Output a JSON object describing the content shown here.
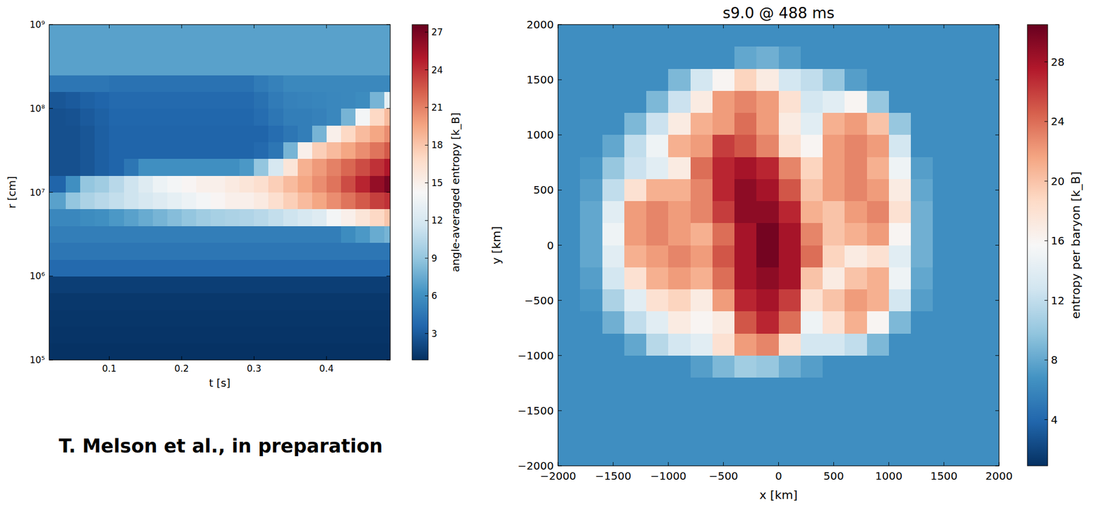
{
  "chart_data": [
    {
      "type": "heatmap",
      "x_label": "t [s]",
      "y_label": "r [cm]",
      "annotation": "T. Melson et al., in preparation",
      "log": "y",
      "grid": false,
      "xlim": [
        0.017,
        0.488
      ],
      "ylim": [
        100000,
        1000000000
      ],
      "xticks": [
        0.1,
        0.2,
        0.3,
        0.4
      ],
      "yticks": [
        {
          "value": 100000,
          "label": "10⁵"
        },
        {
          "value": 1000000,
          "label": "10⁶"
        },
        {
          "value": 10000000,
          "label": "10⁷"
        },
        {
          "value": 100000000,
          "label": "10⁸"
        },
        {
          "value": 1000000000,
          "label": "10⁹"
        }
      ],
      "x_edges": [
        0.017,
        0.04,
        0.06,
        0.08,
        0.1,
        0.12,
        0.14,
        0.16,
        0.18,
        0.2,
        0.22,
        0.24,
        0.26,
        0.28,
        0.3,
        0.32,
        0.34,
        0.36,
        0.38,
        0.4,
        0.42,
        0.44,
        0.46,
        0.48,
        0.488
      ],
      "y_edges": [
        100000,
        158489,
        251189,
        398107,
        630957,
        1000000,
        1584893,
        2511886,
        3981072,
        6309573,
        10000000,
        15848932,
        25118864,
        39810717,
        63095734,
        100000000,
        158489319,
        251188643,
        398107171,
        630957344,
        1000000000
      ],
      "values": [
        [
          1.0,
          1.0,
          1.0,
          1.0,
          1.0,
          1.0,
          1.0,
          1.0,
          1.0,
          1.0,
          1.0,
          1.0,
          1.0,
          1.0,
          1.0,
          1.0,
          1.0,
          1.0,
          1.0,
          1.0,
          1.0,
          1.0,
          1.0,
          1.0
        ],
        [
          1.1,
          1.1,
          1.1,
          1.1,
          1.1,
          1.1,
          1.1,
          1.1,
          1.1,
          1.1,
          1.1,
          1.1,
          1.1,
          1.1,
          1.1,
          1.1,
          1.1,
          1.1,
          1.1,
          1.1,
          1.1,
          1.1,
          1.1,
          1.1
        ],
        [
          1.2,
          1.2,
          1.2,
          1.2,
          1.2,
          1.2,
          1.2,
          1.2,
          1.2,
          1.2,
          1.2,
          1.2,
          1.2,
          1.2,
          1.2,
          1.2,
          1.2,
          1.2,
          1.2,
          1.2,
          1.2,
          1.2,
          1.2,
          1.2
        ],
        [
          1.3,
          1.3,
          1.3,
          1.3,
          1.3,
          1.3,
          1.3,
          1.3,
          1.3,
          1.3,
          1.3,
          1.3,
          1.3,
          1.3,
          1.3,
          1.3,
          1.3,
          1.3,
          1.3,
          1.3,
          1.3,
          1.3,
          1.3,
          1.3
        ],
        [
          1.6,
          1.6,
          1.6,
          1.6,
          1.6,
          1.6,
          1.6,
          1.6,
          1.6,
          1.6,
          1.6,
          1.6,
          1.6,
          1.6,
          1.6,
          1.6,
          1.6,
          1.6,
          1.6,
          1.6,
          1.6,
          1.6,
          1.6,
          1.6
        ],
        [
          3.8,
          3.8,
          3.8,
          3.8,
          3.8,
          3.8,
          3.8,
          3.8,
          3.8,
          3.8,
          3.8,
          3.8,
          3.8,
          3.8,
          3.8,
          3.8,
          3.8,
          3.8,
          3.8,
          3.8,
          3.8,
          3.8,
          3.8,
          3.8
        ],
        [
          4.5,
          4.5,
          4.5,
          4.5,
          4.5,
          4.5,
          4.5,
          4.5,
          4.5,
          4.5,
          4.5,
          4.5,
          4.5,
          4.5,
          4.5,
          4.5,
          4.5,
          4.5,
          4.5,
          4.5,
          4.5,
          4.5,
          4.5,
          4.5
        ],
        [
          5,
          5,
          5,
          5,
          5,
          5,
          5,
          5,
          5,
          5,
          5,
          5,
          5,
          5,
          5,
          5,
          5,
          5,
          5,
          5,
          5.8,
          6.5,
          7.5,
          8
        ],
        [
          5.5,
          5.5,
          5.8,
          6,
          6.5,
          7,
          7.5,
          8,
          8.5,
          9,
          9.5,
          9.8,
          10,
          10.2,
          10.5,
          11,
          11.5,
          12,
          12.5,
          14,
          15,
          16,
          17,
          18
        ],
        [
          7,
          9,
          10,
          10.5,
          11,
          11.5,
          12,
          12.5,
          13,
          13.5,
          14,
          14.5,
          15,
          15,
          15.5,
          16.5,
          17.5,
          18.5,
          19.5,
          20.5,
          21.5,
          22.5,
          23.5,
          24
        ],
        [
          3.5,
          6,
          9,
          9.5,
          10.5,
          11.5,
          12.5,
          13.5,
          14,
          14.5,
          15,
          15,
          15.5,
          16,
          16.5,
          17.5,
          18.5,
          19.5,
          20.5,
          21.5,
          23,
          24.5,
          26,
          27
        ],
        [
          2.5,
          2.5,
          2.8,
          3.2,
          3.5,
          4.5,
          6,
          6,
          6,
          6,
          6,
          6,
          6,
          6.5,
          9,
          12,
          16,
          19,
          20,
          21,
          22,
          23,
          24,
          25
        ],
        [
          2.5,
          2.5,
          2.8,
          3.2,
          3.5,
          3.5,
          3.5,
          3.5,
          3.5,
          3.5,
          3.5,
          3.5,
          3.5,
          3.5,
          3.8,
          4.5,
          8,
          15,
          17.5,
          18.5,
          19.5,
          20.5,
          21.5,
          22.5
        ],
        [
          2.5,
          2.5,
          2.8,
          3.2,
          3.5,
          3.5,
          3.5,
          3.5,
          3.5,
          3.5,
          3.5,
          3.5,
          3.5,
          3.5,
          3.5,
          4,
          4.5,
          5,
          8,
          15,
          17,
          18.5,
          19.5,
          20.5
        ],
        [
          2.5,
          2.6,
          3,
          3.3,
          3.6,
          3.6,
          3.6,
          3.6,
          3.6,
          3.6,
          3.6,
          3.6,
          3.6,
          3.6,
          4,
          4.5,
          5,
          5,
          5.2,
          5.5,
          8,
          14,
          17,
          18.5
        ],
        [
          2.8,
          3,
          3.3,
          3.5,
          3.8,
          3.8,
          3.8,
          3.8,
          3.8,
          3.8,
          3.8,
          3.8,
          3.8,
          3.8,
          4.2,
          4.8,
          5.2,
          5.3,
          5.4,
          5.5,
          5.6,
          5.8,
          8,
          13
        ],
        [
          4.5,
          4.5,
          4.5,
          4.5,
          4.3,
          4.3,
          4.3,
          4.3,
          4.3,
          4.3,
          4.3,
          4.3,
          4.3,
          4.3,
          4.8,
          5.2,
          5.6,
          5.6,
          5.6,
          5.6,
          5.6,
          5.6,
          5.6,
          5.6
        ],
        [
          7,
          7,
          7,
          7,
          7,
          7,
          7,
          7,
          7,
          7,
          7,
          7,
          7,
          7,
          7,
          7,
          7,
          7,
          7,
          7,
          7,
          7,
          7,
          7
        ],
        [
          7,
          7,
          7,
          7,
          7,
          7,
          7,
          7,
          7,
          7,
          7,
          7,
          7,
          7,
          7,
          7,
          7,
          7,
          7,
          7,
          7,
          7,
          7,
          7
        ],
        [
          7,
          7,
          7,
          7,
          7,
          7,
          7,
          7,
          7,
          7,
          7,
          7,
          7,
          7,
          7,
          7,
          7,
          7,
          7,
          7,
          7,
          7,
          7,
          7
        ]
      ],
      "colorbar": {
        "label": "angle-averaged entropy [k_B]",
        "lim": [
          0.9,
          27.6
        ],
        "ticks": [
          3,
          6,
          9,
          12,
          15,
          18,
          21,
          24,
          27
        ]
      }
    },
    {
      "type": "heatmap",
      "title": "s9.0 @ 488 ms",
      "x_label": "x [km]",
      "y_label": "y [km]",
      "grid": false,
      "xlim": [
        -2000,
        2000
      ],
      "ylim": [
        -2000,
        2000
      ],
      "xticks": [
        {
          "value": -2000,
          "label": "−2000"
        },
        {
          "value": -1500,
          "label": "−1500"
        },
        {
          "value": -1000,
          "label": "−1000"
        },
        {
          "value": -500,
          "label": "−500"
        },
        0,
        500,
        1000,
        1500,
        2000
      ],
      "yticks": [
        {
          "value": -2000,
          "label": "−2000"
        },
        {
          "value": -1500,
          "label": "−1500"
        },
        {
          "value": -1000,
          "label": "−1000"
        },
        {
          "value": -500,
          "label": "−500"
        },
        0,
        500,
        1000,
        1500,
        2000
      ],
      "x_edges": [
        -2000,
        -1800,
        -1600,
        -1400,
        -1200,
        -1000,
        -800,
        -600,
        -400,
        -200,
        0,
        200,
        400,
        600,
        800,
        1000,
        1200,
        1400,
        1600,
        1800,
        2000
      ],
      "y_edges": [
        2000,
        1800,
        1600,
        1400,
        1200,
        1000,
        800,
        600,
        400,
        200,
        0,
        -200,
        -400,
        -600,
        -800,
        -1000,
        -1200,
        -1400,
        -1600,
        -1800,
        -2000
      ],
      "values": [
        [
          6.5,
          6.5,
          6.5,
          6.5,
          6.5,
          6.5,
          6.5,
          6.5,
          6.5,
          6.5,
          6.5,
          6.5,
          6.5,
          6.5,
          6.5,
          6.5,
          6.5,
          6.5,
          6.5,
          6.5
        ],
        [
          6.5,
          6.5,
          6.5,
          6.5,
          6.5,
          6.5,
          6.5,
          6.5,
          8,
          8.5,
          7.5,
          6.5,
          6.5,
          6.5,
          6.5,
          6.5,
          6.5,
          6.5,
          6.5,
          6.5
        ],
        [
          6.5,
          6.5,
          6.5,
          6.5,
          6.5,
          9,
          13,
          16,
          19,
          17,
          13,
          12,
          10,
          7.5,
          6.5,
          6.5,
          6.5,
          6.5,
          6.5,
          6.5
        ],
        [
          6.5,
          6.5,
          6.5,
          6.5,
          9,
          12.5,
          17,
          22,
          23,
          22,
          18,
          13,
          14,
          16,
          10,
          6.5,
          6.5,
          6.5,
          6.5,
          6.5
        ],
        [
          6.5,
          6.5,
          6.5,
          9,
          12.5,
          17,
          21,
          22,
          24,
          22,
          17,
          14,
          21,
          22,
          20,
          10,
          6.5,
          6.5,
          6.5,
          6.5
        ],
        [
          6.5,
          6.5,
          8,
          12,
          15,
          21,
          22,
          26,
          25,
          23,
          18,
          16,
          22,
          23,
          22,
          13,
          6.5,
          6.5,
          6.5,
          6.5
        ],
        [
          6.5,
          7,
          10,
          12.5,
          14,
          17,
          24,
          27,
          28,
          27,
          23,
          19,
          22,
          23,
          21,
          15,
          7.5,
          6.5,
          6.5,
          6.5
        ],
        [
          6.5,
          7.5,
          12,
          18,
          21,
          21,
          23,
          27,
          29,
          28,
          25,
          20,
          22,
          23,
          22,
          17,
          8,
          6.5,
          6.5,
          6.5
        ],
        [
          6.5,
          8,
          14,
          22,
          23,
          22,
          23,
          26,
          29,
          29,
          27,
          21,
          20,
          22,
          23,
          18,
          8.5,
          6.5,
          6.5,
          6.5
        ],
        [
          6.5,
          8,
          15,
          22,
          23,
          22,
          21,
          24,
          28,
          30,
          28,
          23,
          20,
          21,
          22,
          16,
          8.5,
          6.5,
          6.5,
          6.5
        ],
        [
          6.5,
          8,
          14,
          21,
          22,
          23,
          22,
          25,
          28,
          30,
          28,
          24,
          19,
          17,
          18,
          14,
          8.5,
          6.5,
          6.5,
          6.5
        ],
        [
          6.5,
          7.5,
          13,
          18,
          21,
          22,
          21,
          24,
          28,
          29,
          28,
          20,
          17,
          20,
          21,
          15,
          8,
          6.5,
          6.5,
          6.5
        ],
        [
          6.5,
          7,
          11,
          14,
          18,
          19,
          17,
          22,
          27,
          28,
          26,
          18,
          20,
          22,
          21,
          13,
          7.5,
          6.5,
          6.5,
          6.5
        ],
        [
          6.5,
          6.5,
          8.5,
          12,
          14,
          17,
          16,
          17,
          25,
          27,
          24,
          15,
          18,
          21,
          16,
          9,
          6.5,
          6.5,
          6.5,
          6.5
        ],
        [
          6.5,
          6.5,
          6.5,
          8,
          11.5,
          13,
          14,
          18,
          22,
          23,
          18,
          13,
          13,
          12,
          9,
          6.5,
          6.5,
          6.5,
          6.5,
          6.5
        ],
        [
          6.5,
          6.5,
          6.5,
          6.5,
          6.5,
          6.5,
          7.5,
          9,
          10.5,
          10,
          8.5,
          7.5,
          6.5,
          6.5,
          6.5,
          6.5,
          6.5,
          6.5,
          6.5,
          6.5
        ],
        [
          6.5,
          6.5,
          6.5,
          6.5,
          6.5,
          6.5,
          6.5,
          6.5,
          6.5,
          6.5,
          6.5,
          6.5,
          6.5,
          6.5,
          6.5,
          6.5,
          6.5,
          6.5,
          6.5,
          6.5
        ],
        [
          6.5,
          6.5,
          6.5,
          6.5,
          6.5,
          6.5,
          6.5,
          6.5,
          6.5,
          6.5,
          6.5,
          6.5,
          6.5,
          6.5,
          6.5,
          6.5,
          6.5,
          6.5,
          6.5,
          6.5
        ],
        [
          6.5,
          6.5,
          6.5,
          6.5,
          6.5,
          6.5,
          6.5,
          6.5,
          6.5,
          6.5,
          6.5,
          6.5,
          6.5,
          6.5,
          6.5,
          6.5,
          6.5,
          6.5,
          6.5,
          6.5
        ],
        [
          6.5,
          6.5,
          6.5,
          6.5,
          6.5,
          6.5,
          6.5,
          6.5,
          6.5,
          6.5,
          6.5,
          6.5,
          6.5,
          6.5,
          6.5,
          6.5,
          6.5,
          6.5,
          6.5,
          6.5
        ]
      ],
      "colorbar": {
        "label": "entropy per baryon [k_B]",
        "lim": [
          0.9,
          30.5
        ],
        "ticks": [
          4,
          8,
          12,
          16,
          20,
          24,
          28
        ]
      }
    }
  ]
}
